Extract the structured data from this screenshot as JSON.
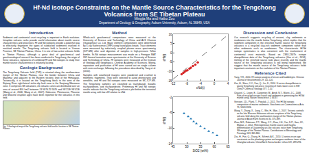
{
  "header": {
    "title": "Hf-Nd Isotope Constraints on the Mantle Source Characteristics for the Tengchong Volcanics from SE Tibetan Plateau",
    "authors": "Mingjia Ma and Haibo Zou",
    "affiliation": "Department of Geology & Geography, Auburn University, Auburn, AL 36849, USA"
  },
  "columns": [
    {
      "sections": [
        {
          "title": "Introduction",
          "paragraphs": [
            "Sediment and continental crust recycling is important in Earth evolution. Intraplate volcanic rocks provide useful information about mantle source characteristics and processes. Hf and Nd isotopes provide a powerful way to effectively fingerprint the types of subducted sediments involved in enriched mantle. The Tengchong volcanic field is located in Yunnan Province, SE Tibetan Plateau, China. It is one of two active volcanic fields in Tibetan Plateau, although a great deal of geochemical and geochronological research has been conducted in Tengchong, the origin of these volcanics, signatures of combined Hf and Nd isotopes to study their mantle source characteristics is relatively lacking."
          ]
        },
        {
          "title": "Geologic Background",
          "paragraphs": [
            "The Tengchong Volcanic field (TVF) is situated along the southwestern margin of the Tibetan Plateau, near the border between China and Myanmar and adjacent to the Eastern tectonic knot of the Himalayas. Tectonically, it is located on the Tengchong block to the west of the Nujiang River right-lateral strike-slip fault zone in the Sanjiang-Sibumasu zone. It comprises 68 volcanoes, 41 volcanic cones are distributed over an area of around 800 km2 between 24°40'N-25°30'N and 98°15'E-98°45'E (Wang et al., 2006; Wang et al., 2007). Holocene, Pleistocene, Pliocene and Miocene eruption ages have been reported for the volcanics in this field."
          ]
        }
      ],
      "figure_caption": "Fig. 1 Geological map of the Tengchong volcanic field and its location in SE Tibetan Plateau."
    },
    {
      "sections": [
        {
          "title": "Method",
          "paragraphs": [
            "Whole-rock geochemical compositions were measured at the University of Science and Technology of China and ALS Chemex (Guangzhou) Co. Ltd. Major element compositions were determined by X-ray fluorescence (XRF) using fused glass beads. Trace elements were measured by inductively coupled plasma mass spectrometry (ICP-MS) after acid digestion of samples in high-pressure Teflon bombs. Sr-Nd isotope measurement was made on a Finnigan MAT 262 thermal ionization mass spectrometer at the University of Science and Technology of China. Hf isotopes were measured at the Institute of Geology and Geophysics, Chinese Academy of Sciences. Mixing, separation and purification of Hf were carried out on single column with resin exchange, following the procedures described by Yang et al. (2010).",
            "Samples with weathered margins were powdered and crushed to millimetric fragments. They were selected to avoid phenocrysts and xenoliths, and Hf and Nd isotopes were measured on MC-ICP-MS. The Tengchong samples are classified as trachybasalt, basaltic trachyandesite, and trachyandesite. Preliminary Hf and Nd isotopic results indicate that the Tengchong volcanics plot below the terrestrial mantle array, with low εHf relative to εNd."
          ]
        }
      ]
    },
    {
      "sections": [
        {
          "title": "Discussion and Conclusion",
          "paragraphs": [
            "Our research suggests recycling of ancient, clay sediments or mudstones into the mantle below Tengchong, which implies that the sediment component in the enriched mantle source for Tengchong volcanics is a recycled clay-rich sediment component rather than other sediments such as sandstones. The characteristic Hf-Nd isotope systematics is also consistent with the involvement of continental crust materials. Based on 238U-230Th isotope disequilibrium data of the Tengchong volcanics (Zou et al., 2014), melting of the enriched source took place recently and the mantle source of the Tengchong volcanics is still being replenished. We suggest that the mantle source of the Tengchong volcanics holds important constraints on the evolution of the Tibetan Plateau."
          ]
        }
      ],
      "references_title": "Reference Cited",
      "references": [
        "Yang, Y.H., 2010. Hf isotope analysis of zircon and baddeleyite. Chinese Journal of Geochemistry 29, 111-120.",
        "Zou, H., Shen, C.C., Fan, Q., Lin, K., 2014. U-series disequilibrium in young Tengchong volcanics: recycling of mafic lower crust in SW China? Chemical Geology 377, 1-10.",
        "Chauvel, C., Lewin, E., Carpentier, M., Arndt, N.T., Marini, J.C., 2008. Role of recycled oceanic basalt and sediment in generating the Hf-Nd mantle array. Nature Geoscience 1, 64-67.",
        "Vervoort, J.D., Plank, T., Prytulak, J., 2011. The Hf-Nd isotopic composition of marine sediments. Geochimica et Cosmochimica Acta 75, 5903-5926.",
        "Wang, Y., Zhang, X., Jiang, C., Wei, H., Wan, J., 2007. Tectonic controls on the late Miocene-Holocene volcanic eruptions of the Tengchong volcanic field along the southeastern margin of the Tibetan plateau. Journal of Asian Earth Sciences 30, 375-389.",
        "Zhou, M.F., Robinson, P.T., Wang, C.Y., Zhao, J.H., Yan, D.P., Gao, J.F., Malpas, J., 2012. Heterogeneous mantle source and magma differentiation of Quaternary arc-like volcanic rocks from Tengchong, SE margin of the Tibetan Plateau. Contributions to Mineralogy and Petrology 163, 841-860.",
        "Zou, H., Fan, Q., Zhang, H., Schmitt, A.K., 2010. U-series zircon age constraints on the plumbing system and magma residence times of the Changbai volcano, China/North Korea border. Lithos 119, 289-296."
      ]
    }
  ],
  "chart_data": [
    {
      "type": "scatter",
      "x_label": "εNd(t)",
      "y_label": "εHf(t)",
      "xlim": [
        -12,
        4
      ],
      "xticks": [
        -12,
        -8,
        -4,
        0,
        4
      ],
      "ylim": [
        -15,
        10
      ],
      "yticks": [
        -15,
        -10,
        -5,
        0,
        5,
        10
      ],
      "grid": false,
      "series": [
        {
          "type": "line",
          "color": "#555555",
          "line_style": "dash",
          "x": [
            -12,
            4
          ],
          "values": [
            -14.2,
            9.6
          ]
        },
        {
          "type": "scatter",
          "color": "#d62728",
          "marker": "circle",
          "x": [
            -9.5,
            -9,
            -8.6,
            -8.2,
            -7.8,
            -7.2,
            -6.8,
            -6.2,
            -5.5,
            -4.8
          ],
          "values": [
            -11.5,
            -10.8,
            -10.2,
            -9.6,
            -9.4,
            -8.5,
            -8.0,
            -7.1,
            -6.4,
            -5.2
          ]
        }
      ]
    },
    {
      "type": "scatter",
      "x_label": "SiO2 (wt%)",
      "y_label": "εHf(t)",
      "xlim": [
        45,
        65
      ],
      "xticks": [
        45,
        50,
        55,
        60,
        65
      ],
      "ylim": [
        -14,
        -2
      ],
      "yticks": [
        -14,
        -10,
        -6,
        -2
      ],
      "grid": false,
      "series": [
        {
          "type": "scatter",
          "color": "#1f77b4",
          "marker": "triangle-up",
          "x": [
            49,
            50.5,
            51.5,
            52.5,
            53.5,
            55,
            56.5,
            58,
            59.5,
            61
          ],
          "values": [
            -6.2,
            -7.0,
            -7.6,
            -8.3,
            -8.8,
            -9.5,
            -10.1,
            -10.8,
            -11.2,
            -11.9
          ]
        }
      ]
    }
  ]
}
